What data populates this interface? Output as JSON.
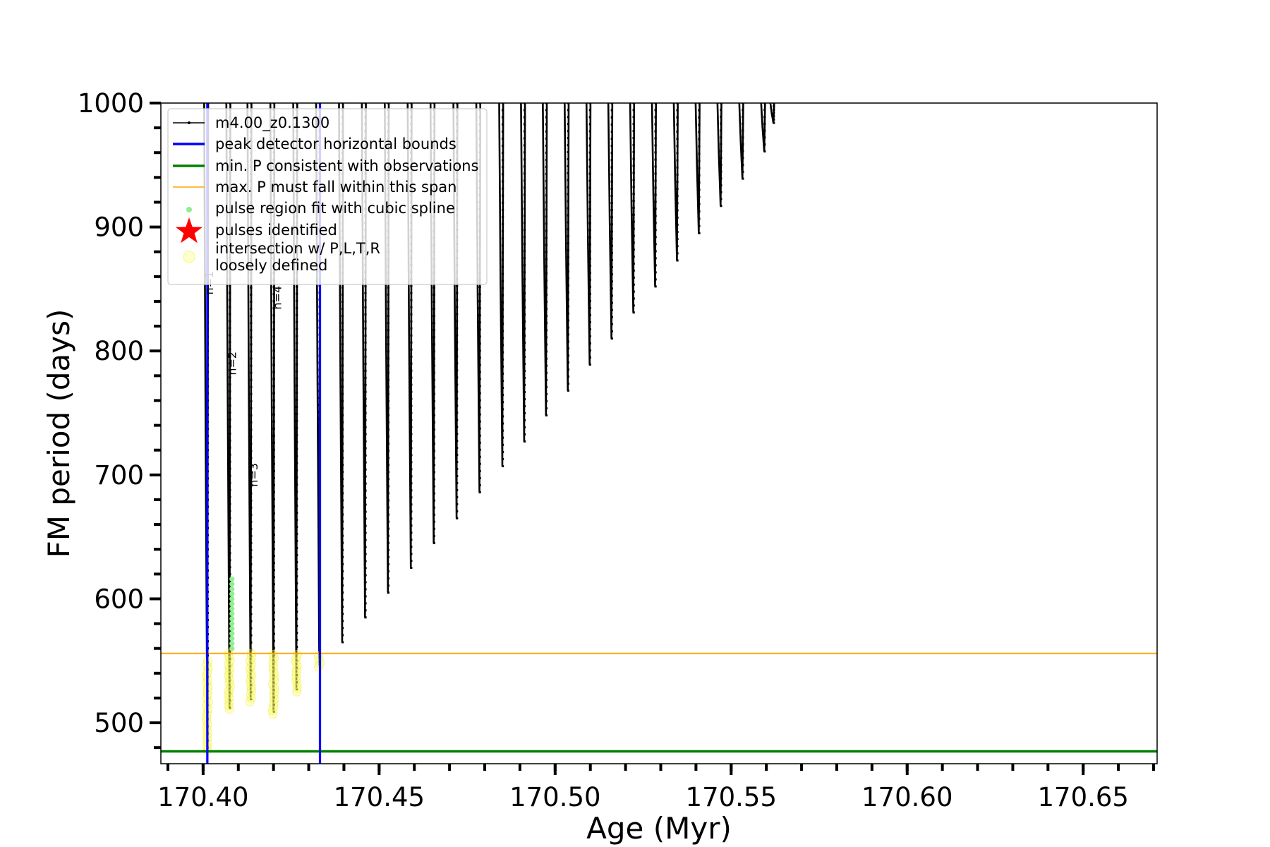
{
  "chart_data": {
    "type": "line",
    "title": "",
    "xlabel": "Age (Myr)",
    "ylabel": "FM period (days)",
    "xlim": [
      170.388,
      170.671
    ],
    "ylim": [
      467,
      1000
    ],
    "x_ticks": [
      170.4,
      170.45,
      170.5,
      170.55,
      170.6,
      170.65
    ],
    "x_tick_labels": [
      "170.40",
      "170.45",
      "170.50",
      "170.55",
      "170.60",
      "170.65"
    ],
    "y_ticks": [
      500,
      600,
      700,
      800,
      900,
      1000
    ],
    "y_tick_labels": [
      "500",
      "600",
      "700",
      "800",
      "900",
      "1000"
    ],
    "legend": {
      "placement": "top-left",
      "entries": [
        {
          "label": "m4.00_z0.1300",
          "style": "line-marker",
          "color": "#000000"
        },
        {
          "label": "peak detector horizontal bounds",
          "style": "line",
          "color": "#0000ff"
        },
        {
          "label": "min. P consistent with observations",
          "style": "line",
          "color": "#008000"
        },
        {
          "label": "max. P must fall within this span",
          "style": "thin-line",
          "color": "#ffa500"
        },
        {
          "label": "pulse region fit with cubic spline",
          "style": "dot",
          "color": "#90ee90"
        },
        {
          "label": "pulses identified",
          "style": "star",
          "color": "#ff0000"
        },
        {
          "label": "intersection w/ P,L,T,R",
          "label2": "loosely defined",
          "style": "circle",
          "color": "#ffff99"
        }
      ]
    },
    "series": [
      {
        "name": "m4.00_z0.1300",
        "color": "#000000",
        "pulses": [
          {
            "x": 170.4012,
            "min": 480
          },
          {
            "x": 170.4075,
            "min": 512
          },
          {
            "x": 170.4135,
            "min": 519
          },
          {
            "x": 170.42,
            "min": 509
          },
          {
            "x": 170.4265,
            "min": 527
          },
          {
            "x": 170.433,
            "min": 547
          },
          {
            "x": 170.4395,
            "min": 565
          },
          {
            "x": 170.446,
            "min": 585
          },
          {
            "x": 170.4525,
            "min": 605
          },
          {
            "x": 170.459,
            "min": 625
          },
          {
            "x": 170.4655,
            "min": 645
          },
          {
            "x": 170.472,
            "min": 665
          },
          {
            "x": 170.4785,
            "min": 686
          },
          {
            "x": 170.485,
            "min": 707
          },
          {
            "x": 170.4912,
            "min": 727
          },
          {
            "x": 170.4974,
            "min": 748
          },
          {
            "x": 170.5036,
            "min": 768
          },
          {
            "x": 170.5098,
            "min": 789
          },
          {
            "x": 170.516,
            "min": 810
          },
          {
            "x": 170.5222,
            "min": 831
          },
          {
            "x": 170.5284,
            "min": 852
          },
          {
            "x": 170.5346,
            "min": 873
          },
          {
            "x": 170.5408,
            "min": 895
          },
          {
            "x": 170.547,
            "min": 917
          },
          {
            "x": 170.5532,
            "min": 939
          },
          {
            "x": 170.5594,
            "min": 961
          },
          {
            "x": 170.562,
            "min": 984
          }
        ]
      }
    ],
    "peak_detector_bounds_x": [
      170.4012,
      170.4332
    ],
    "min_P_observed": 477,
    "max_P_span": 556,
    "spline_fit_region": {
      "x": 170.4082,
      "y_range": [
        560,
        617
      ]
    },
    "intersections": [
      {
        "x": 170.4012,
        "y_range": [
          478,
          552
        ]
      },
      {
        "x": 170.4075,
        "y_range": [
          511,
          556
        ]
      },
      {
        "x": 170.4135,
        "y_range": [
          517,
          556
        ]
      },
      {
        "x": 170.42,
        "y_range": [
          507,
          556
        ]
      },
      {
        "x": 170.4265,
        "y_range": [
          525,
          556
        ]
      },
      {
        "x": 170.433,
        "y_range": [
          545,
          556
        ]
      }
    ],
    "pulse_labels": [
      {
        "text": "n=1",
        "x": 170.4028,
        "y": 855
      },
      {
        "text": "n=2",
        "x": 170.4093,
        "y": 790
      },
      {
        "text": "n=3",
        "x": 170.4155,
        "y": 700
      },
      {
        "text": "n=4",
        "x": 170.4222,
        "y": 843
      }
    ]
  }
}
